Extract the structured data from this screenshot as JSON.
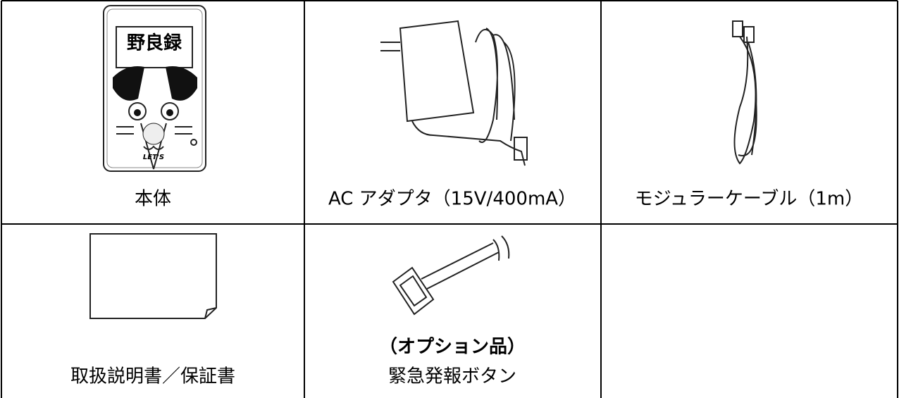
{
  "table": {
    "rows": [
      [
        {
          "label": "本体",
          "device_title": "野良録",
          "device_brand": "LET'S"
        },
        {
          "label": "AC アダプタ（15V/400mA）"
        },
        {
          "label": "モジュラーケーブル（1m）"
        }
      ],
      [
        {
          "label": "取扱説明書／保証書"
        },
        {
          "note": "（オプション品）",
          "label": "緊急発報ボタン"
        }
      ]
    ]
  }
}
